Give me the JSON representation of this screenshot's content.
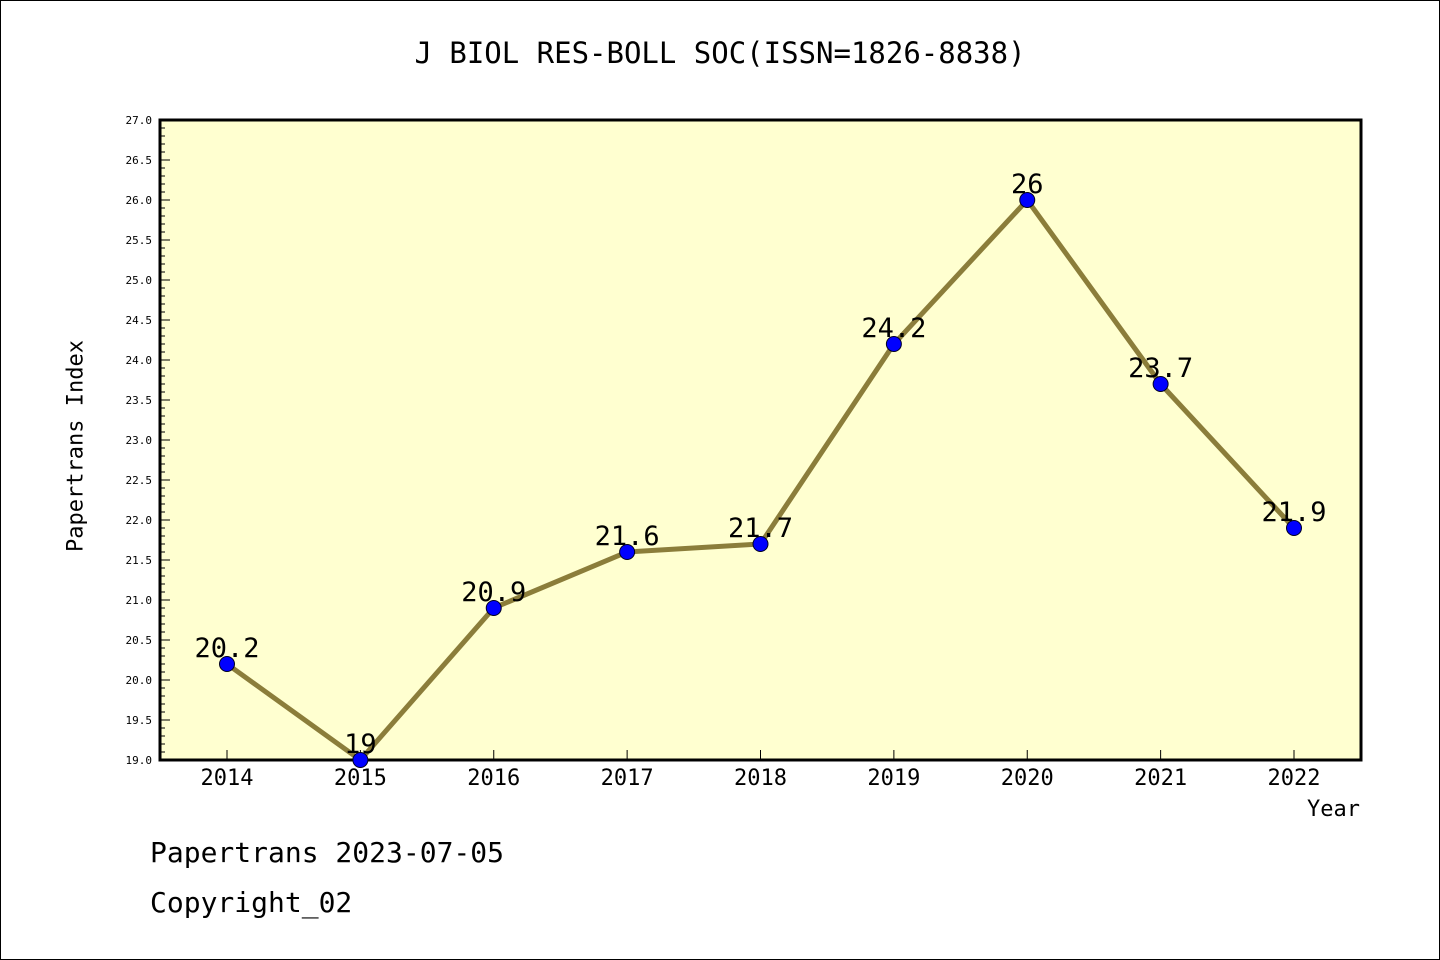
{
  "chart_data": {
    "type": "line",
    "title": "J BIOL RES-BOLL SOC(ISSN=1826-8838)",
    "xlabel": "Year",
    "ylabel": "Papertrans Index",
    "x": [
      "2014",
      "2015",
      "2016",
      "2017",
      "2018",
      "2019",
      "2020",
      "2021",
      "2022"
    ],
    "values": [
      20.2,
      19,
      20.9,
      21.6,
      21.7,
      24.2,
      26,
      23.7,
      21.9
    ],
    "data_labels": [
      "20.2",
      "19",
      "20.9",
      "21.6",
      "21.7",
      "24.2",
      "26",
      "23.7",
      "21.9"
    ],
    "ylim": [
      19.0,
      27.0
    ],
    "y_ticks": [
      "19.0",
      "19.5",
      "20.0",
      "20.5",
      "21.0",
      "21.5",
      "22.0",
      "22.5",
      "23.0",
      "23.5",
      "24.0",
      "24.5",
      "25.0",
      "25.5",
      "26.0",
      "26.5",
      "27.0"
    ],
    "grid": false,
    "line_color": "#8b7d3a",
    "marker_color": "#0000ff",
    "plot_background": "#ffffd0"
  },
  "footer": {
    "source": "Papertrans 2023-07-05",
    "copyright": "Copyright_02"
  }
}
